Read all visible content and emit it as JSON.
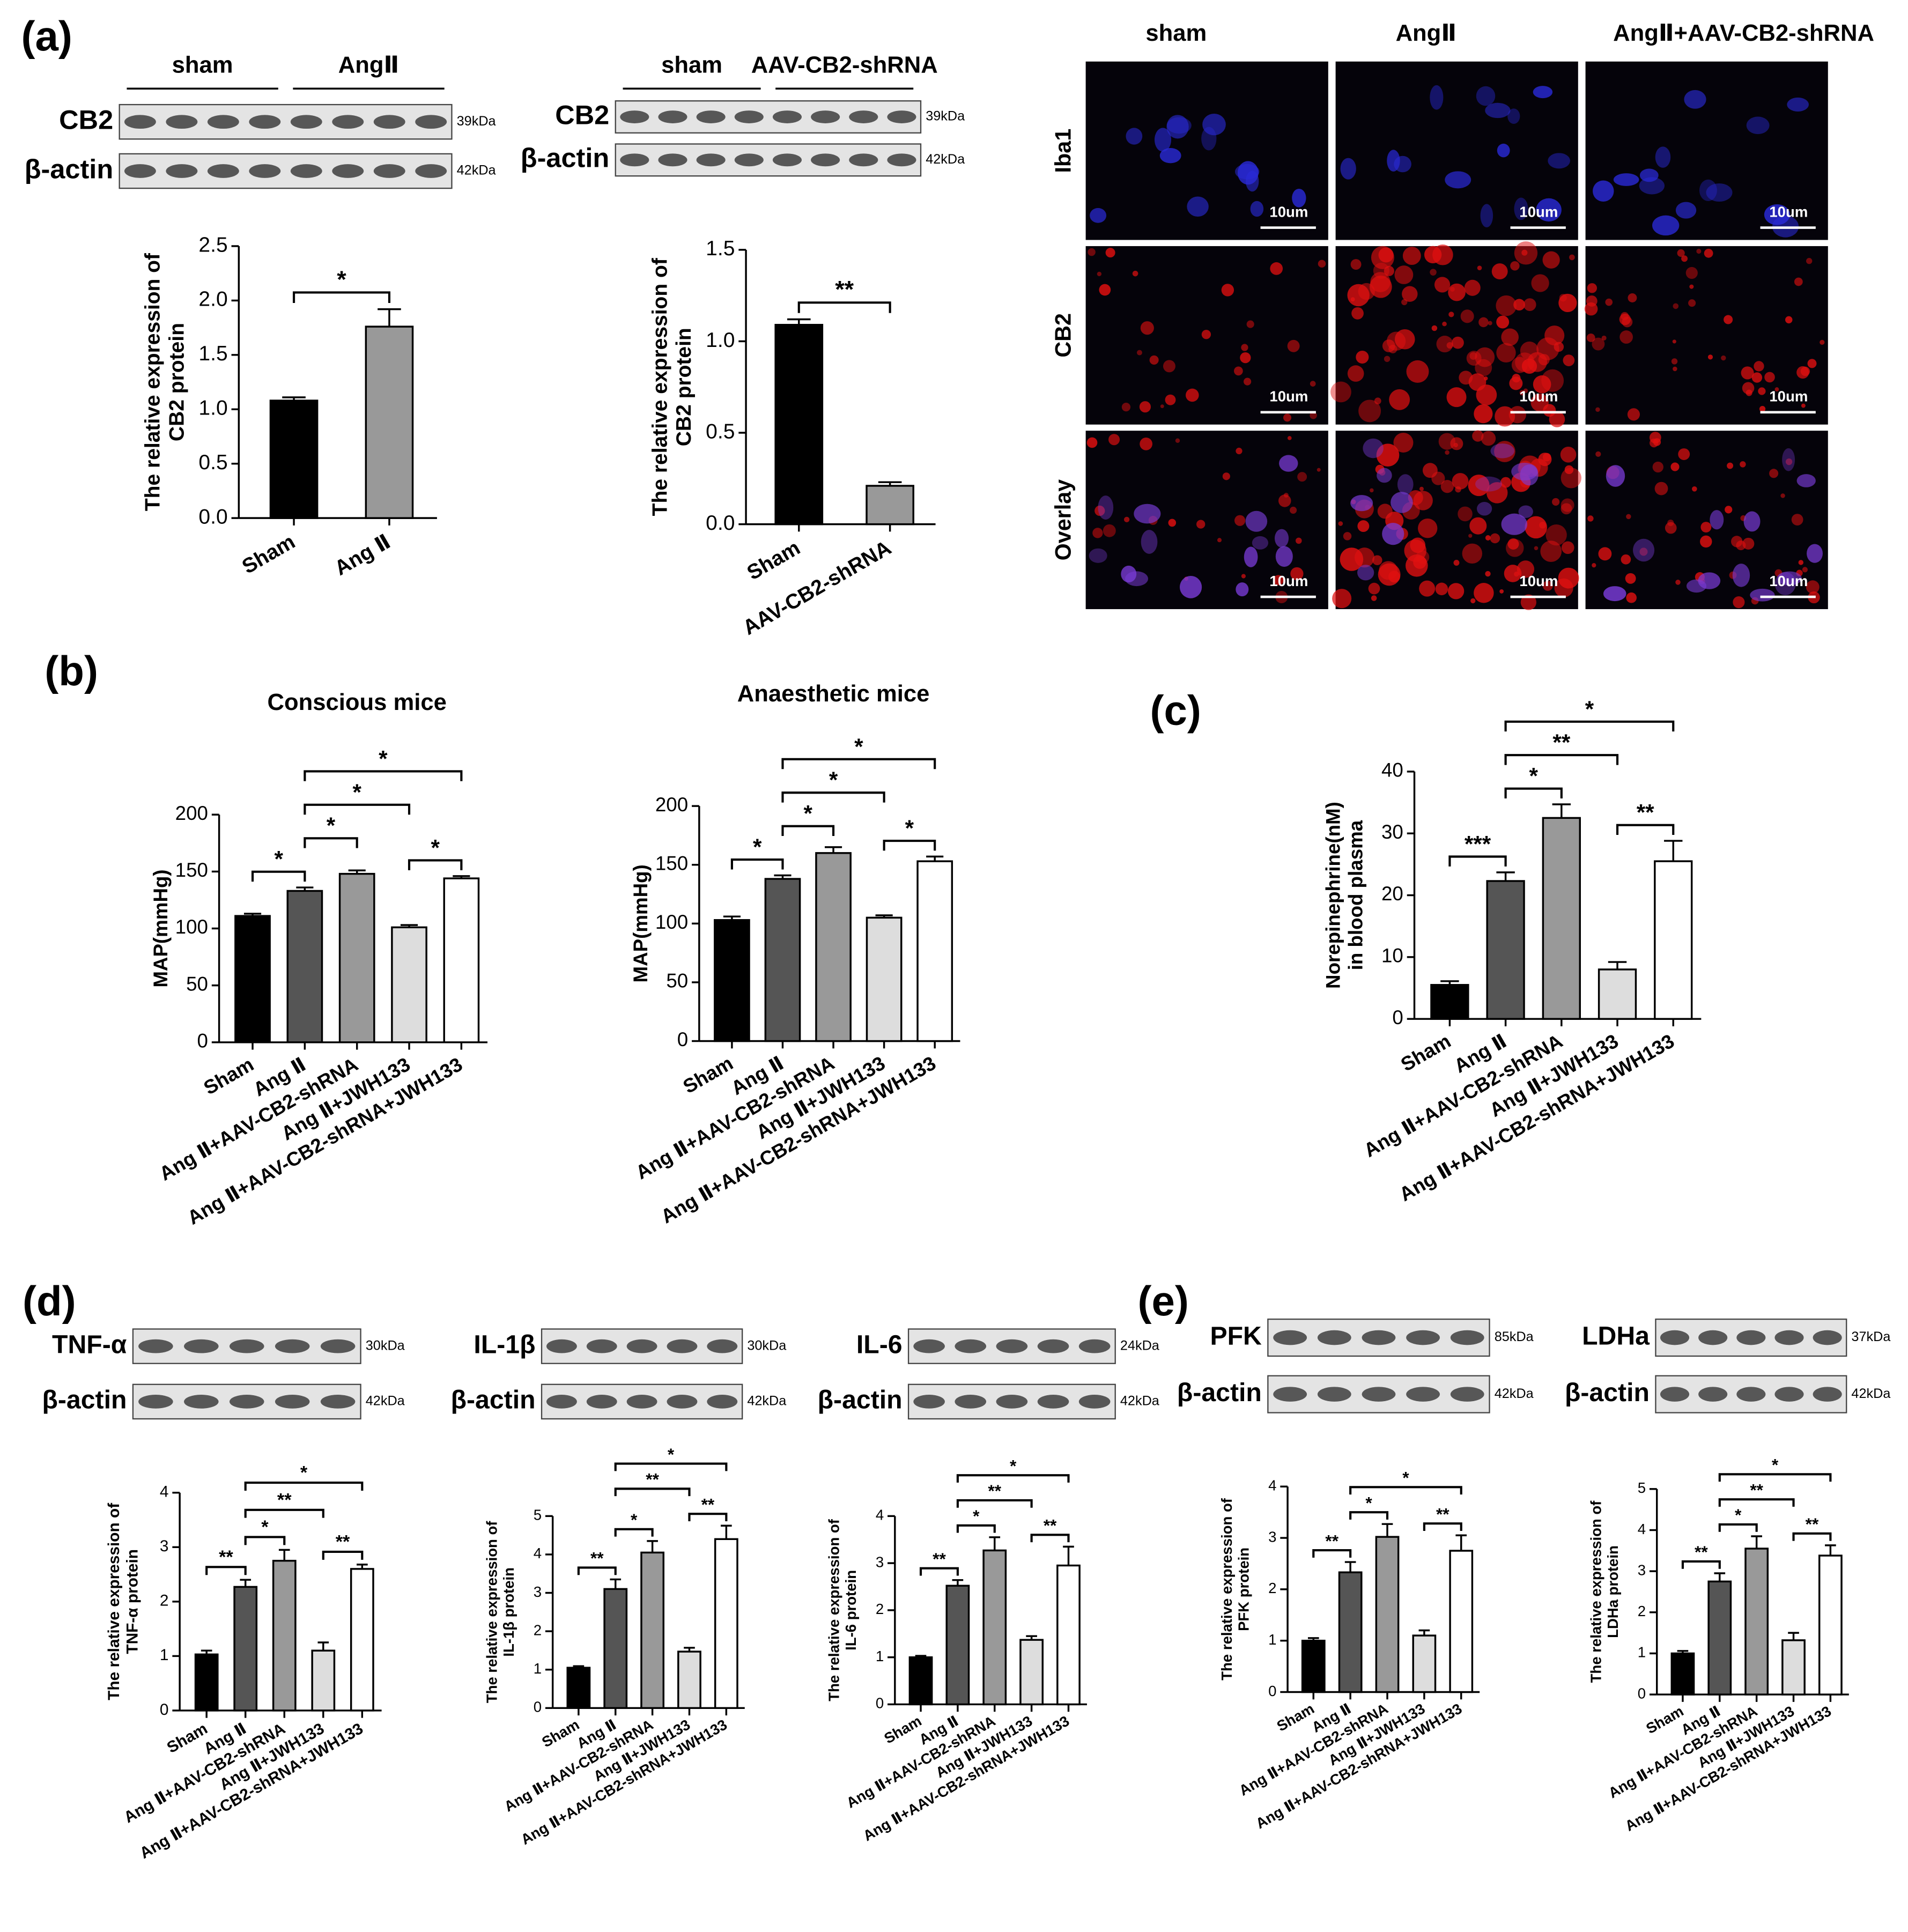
{
  "panel_labels": [
    "(a)",
    "(b)",
    "(c)",
    "(d)",
    "(e)"
  ],
  "blots": [
    {
      "groups": [
        "sham",
        "AngⅡ"
      ],
      "rows": [
        {
          "protein": "CB2",
          "kda": "39kDa"
        },
        {
          "protein": "β-actin",
          "kda": "42kDa"
        }
      ]
    },
    {
      "groups": [
        "sham",
        "AAV-CB2-shRNA"
      ],
      "rows": [
        {
          "protein": "CB2",
          "kda": "39kDa"
        },
        {
          "protein": "β-actin",
          "kda": "42kDa"
        }
      ]
    },
    {
      "rows": [
        {
          "protein": "TNF-α",
          "kda": "30kDa"
        },
        {
          "protein": "β-actin",
          "kda": "42kDa"
        }
      ]
    },
    {
      "rows": [
        {
          "protein": "IL-1β",
          "kda": "30kDa"
        },
        {
          "protein": "β-actin",
          "kda": "42kDa"
        }
      ]
    },
    {
      "rows": [
        {
          "protein": "IL-6",
          "kda": "24kDa"
        },
        {
          "protein": "β-actin",
          "kda": "42kDa"
        }
      ]
    },
    {
      "rows": [
        {
          "protein": "PFK",
          "kda": "85kDa"
        },
        {
          "protein": "β-actin",
          "kda": "42kDa"
        }
      ]
    },
    {
      "rows": [
        {
          "protein": "LDHa",
          "kda": "37kDa"
        },
        {
          "protein": "β-actin",
          "kda": "42kDa"
        }
      ]
    }
  ],
  "microscopy": {
    "columns": [
      "sham",
      "AngⅡ",
      "AngⅡ+AAV-CB2-shRNA"
    ],
    "rows": [
      "Iba1",
      "CB2",
      "Overlay"
    ],
    "scale_bar": "10um"
  },
  "chart_data": [
    {
      "type": "bar",
      "ylabel": [
        "The relative expression of",
        "CB2 protein"
      ],
      "categories": [
        "Sham",
        "Ang Ⅱ"
      ],
      "values": [
        1.08,
        1.76
      ],
      "errors": [
        0.03,
        0.16
      ],
      "colors": [
        "#000000",
        "#999999"
      ],
      "ylim": [
        0,
        2.5
      ],
      "yticks": [
        {
          "value": 0,
          "label": "0.0"
        },
        {
          "value": 0.5,
          "label": "0.5"
        },
        {
          "value": 1,
          "label": "1.0"
        },
        {
          "value": 1.5,
          "label": "1.5"
        },
        {
          "value": 2,
          "label": "2.0"
        },
        {
          "value": 2.5,
          "label": "2.5"
        }
      ],
      "annotations": [
        {
          "between": [
            0,
            1
          ],
          "label": "*"
        }
      ]
    },
    {
      "type": "bar",
      "ylabel": [
        "The relative expression of",
        "CB2 protein"
      ],
      "categories": [
        "Sham",
        "AAV-CB2-shRNA"
      ],
      "values": [
        1.09,
        0.21
      ],
      "errors": [
        0.03,
        0.02
      ],
      "colors": [
        "#000000",
        "#999999"
      ],
      "ylim": [
        0,
        1.5
      ],
      "yticks": [
        {
          "value": 0,
          "label": "0.0"
        },
        {
          "value": 0.5,
          "label": "0.5"
        },
        {
          "value": 1,
          "label": "1.0"
        },
        {
          "value": 1.5,
          "label": "1.5"
        }
      ],
      "annotations": [
        {
          "between": [
            0,
            1
          ],
          "label": "**"
        }
      ]
    },
    {
      "type": "bar",
      "title": "Conscious mice",
      "ylabel": [
        "MAP(mmHg)"
      ],
      "categories": [
        "Sham",
        "Ang Ⅱ",
        "Ang Ⅱ+AAV-CB2-shRNA",
        "Ang Ⅱ+JWH133",
        "Ang Ⅱ+AAV-CB2-shRNA+JWH133"
      ],
      "values": [
        111,
        133,
        148,
        101,
        144
      ],
      "errors": [
        2,
        3,
        3,
        2,
        2
      ],
      "colors": [
        "#000000",
        "#555555",
        "#999999",
        "#dddddd",
        "#ffffff"
      ],
      "ylim": [
        0,
        200
      ],
      "yticks": [
        0,
        50,
        100,
        150,
        200
      ],
      "annotations": [
        {
          "between": [
            0,
            1
          ],
          "label": "*"
        },
        {
          "between": [
            1,
            2
          ],
          "label": "*"
        },
        {
          "between": [
            3,
            4
          ],
          "label": "*"
        },
        {
          "between": [
            1,
            3
          ],
          "label": "*"
        },
        {
          "between": [
            1,
            4
          ],
          "label": "*"
        }
      ]
    },
    {
      "type": "bar",
      "title": "Anaesthetic mice",
      "ylabel": [
        "MAP(mmHg)"
      ],
      "categories": [
        "Sham",
        "Ang Ⅱ",
        "Ang Ⅱ+AAV-CB2-shRNA",
        "Ang Ⅱ+JWH133",
        "Ang Ⅱ+AAV-CB2-shRNA+JWH133"
      ],
      "values": [
        103,
        138,
        160,
        105,
        153
      ],
      "errors": [
        3,
        3,
        5,
        2,
        4
      ],
      "colors": [
        "#000000",
        "#555555",
        "#999999",
        "#dddddd",
        "#ffffff"
      ],
      "ylim": [
        0,
        200
      ],
      "yticks": [
        0,
        50,
        100,
        150,
        200
      ],
      "annotations": [
        {
          "between": [
            0,
            1
          ],
          "label": "*"
        },
        {
          "between": [
            1,
            2
          ],
          "label": "*"
        },
        {
          "between": [
            3,
            4
          ],
          "label": "*"
        },
        {
          "between": [
            1,
            3
          ],
          "label": "*"
        },
        {
          "between": [
            1,
            4
          ],
          "label": "*"
        }
      ]
    },
    {
      "type": "bar",
      "ylabel": [
        "Norepinephrine(nM)",
        "in blood plasma"
      ],
      "categories": [
        "Sham",
        "Ang Ⅱ",
        "Ang Ⅱ+AAV-CB2-shRNA",
        "Ang Ⅱ+JWH133",
        "Ang Ⅱ+AAV-CB2-shRNA+JWH133"
      ],
      "values": [
        5.5,
        22.3,
        32.5,
        8,
        25.5
      ],
      "errors": [
        0.6,
        1.4,
        2.2,
        1.2,
        3.3
      ],
      "colors": [
        "#000000",
        "#555555",
        "#999999",
        "#dddddd",
        "#ffffff"
      ],
      "ylim": [
        0,
        40
      ],
      "yticks": [
        0,
        10,
        20,
        30,
        40
      ],
      "annotations": [
        {
          "between": [
            0,
            1
          ],
          "label": "***"
        },
        {
          "between": [
            1,
            2
          ],
          "label": "*"
        },
        {
          "between": [
            3,
            4
          ],
          "label": "**"
        },
        {
          "between": [
            1,
            3
          ],
          "label": "**"
        },
        {
          "between": [
            1,
            4
          ],
          "label": "*"
        }
      ]
    },
    {
      "type": "bar",
      "ylabel": [
        "The relative expression of",
        "TNF-α protein"
      ],
      "categories": [
        "Sham",
        "Ang Ⅱ",
        "Ang Ⅱ+AAV-CB2-shRNA",
        "Ang Ⅱ+JWH133",
        "Ang Ⅱ+AAV-CB2-shRNA+JWH133"
      ],
      "values": [
        1.03,
        2.27,
        2.75,
        1.1,
        2.6
      ],
      "errors": [
        0.07,
        0.13,
        0.2,
        0.15,
        0.08
      ],
      "colors": [
        "#000000",
        "#555555",
        "#999999",
        "#dddddd",
        "#ffffff"
      ],
      "ylim": [
        0,
        4
      ],
      "yticks": [
        0,
        1,
        2,
        3,
        4
      ],
      "annotations": [
        {
          "between": [
            0,
            1
          ],
          "label": "**"
        },
        {
          "between": [
            1,
            2
          ],
          "label": "*"
        },
        {
          "between": [
            3,
            4
          ],
          "label": "**"
        },
        {
          "between": [
            1,
            3
          ],
          "label": "**"
        },
        {
          "between": [
            1,
            4
          ],
          "label": "*"
        }
      ]
    },
    {
      "type": "bar",
      "ylabel": [
        "The relative expression of",
        "IL-1β protein"
      ],
      "categories": [
        "Sham",
        "Ang Ⅱ",
        "Ang Ⅱ+AAV-CB2-shRNA",
        "Ang Ⅱ+JWH133",
        "Ang Ⅱ+AAV-CB2-shRNA+JWH133"
      ],
      "values": [
        1.05,
        3.1,
        4.05,
        1.47,
        4.4
      ],
      "errors": [
        0.04,
        0.25,
        0.3,
        0.1,
        0.35
      ],
      "colors": [
        "#000000",
        "#555555",
        "#999999",
        "#dddddd",
        "#ffffff"
      ],
      "ylim": [
        0,
        5
      ],
      "yticks": [
        0,
        1,
        2,
        3,
        4,
        5
      ],
      "annotations": [
        {
          "between": [
            0,
            1
          ],
          "label": "**"
        },
        {
          "between": [
            1,
            2
          ],
          "label": "*"
        },
        {
          "between": [
            3,
            4
          ],
          "label": "**"
        },
        {
          "between": [
            1,
            3
          ],
          "label": "**"
        },
        {
          "between": [
            1,
            4
          ],
          "label": "*"
        }
      ]
    },
    {
      "type": "bar",
      "ylabel": [
        "The relative expression of",
        "IL-6 protein"
      ],
      "categories": [
        "Sham",
        "Ang Ⅱ",
        "Ang Ⅱ+AAV-CB2-shRNA",
        "Ang Ⅱ+JWH133",
        "Ang Ⅱ+AAV-CB2-shRNA+JWH133"
      ],
      "values": [
        1.0,
        2.52,
        3.27,
        1.37,
        2.95
      ],
      "errors": [
        0.03,
        0.12,
        0.28,
        0.08,
        0.4
      ],
      "colors": [
        "#000000",
        "#555555",
        "#999999",
        "#dddddd",
        "#ffffff"
      ],
      "ylim": [
        0,
        4
      ],
      "yticks": [
        0,
        1,
        2,
        3,
        4
      ],
      "annotations": [
        {
          "between": [
            0,
            1
          ],
          "label": "**"
        },
        {
          "between": [
            1,
            2
          ],
          "label": "*"
        },
        {
          "between": [
            3,
            4
          ],
          "label": "**"
        },
        {
          "between": [
            1,
            3
          ],
          "label": "**"
        },
        {
          "between": [
            1,
            4
          ],
          "label": "*"
        }
      ]
    },
    {
      "type": "bar",
      "ylabel": [
        "The relative expression of",
        "PFK protein"
      ],
      "categories": [
        "Sham",
        "Ang Ⅱ",
        "Ang Ⅱ+AAV-CB2-shRNA",
        "Ang Ⅱ+JWH133",
        "Ang Ⅱ+AAV-CB2-shRNA+JWH133"
      ],
      "values": [
        1.0,
        2.33,
        3.02,
        1.1,
        2.75
      ],
      "errors": [
        0.05,
        0.2,
        0.25,
        0.1,
        0.3
      ],
      "colors": [
        "#000000",
        "#555555",
        "#999999",
        "#dddddd",
        "#ffffff"
      ],
      "ylim": [
        0,
        4
      ],
      "yticks": [
        0,
        1,
        2,
        3,
        4
      ],
      "annotations": [
        {
          "between": [
            0,
            1
          ],
          "label": "**"
        },
        {
          "between": [
            1,
            2
          ],
          "label": "*"
        },
        {
          "between": [
            3,
            4
          ],
          "label": "**"
        },
        {
          "between": [
            1,
            4
          ],
          "label": "*"
        }
      ]
    },
    {
      "type": "bar",
      "ylabel": [
        "The relative expression of",
        "LDHa protein"
      ],
      "categories": [
        "Sham",
        "Ang Ⅱ",
        "Ang Ⅱ+AAV-CB2-shRNA",
        "Ang Ⅱ+JWH133",
        "Ang Ⅱ+AAV-CB2-shRNA+JWH133"
      ],
      "values": [
        1.0,
        2.75,
        3.55,
        1.32,
        3.38
      ],
      "errors": [
        0.06,
        0.2,
        0.3,
        0.18,
        0.25
      ],
      "colors": [
        "#000000",
        "#555555",
        "#999999",
        "#dddddd",
        "#ffffff"
      ],
      "ylim": [
        0,
        5
      ],
      "yticks": [
        0,
        1,
        2,
        3,
        4,
        5
      ],
      "annotations": [
        {
          "between": [
            0,
            1
          ],
          "label": "**"
        },
        {
          "between": [
            1,
            2
          ],
          "label": "*"
        },
        {
          "between": [
            3,
            4
          ],
          "label": "**"
        },
        {
          "between": [
            1,
            3
          ],
          "label": "**"
        },
        {
          "between": [
            1,
            4
          ],
          "label": "*"
        }
      ]
    }
  ]
}
